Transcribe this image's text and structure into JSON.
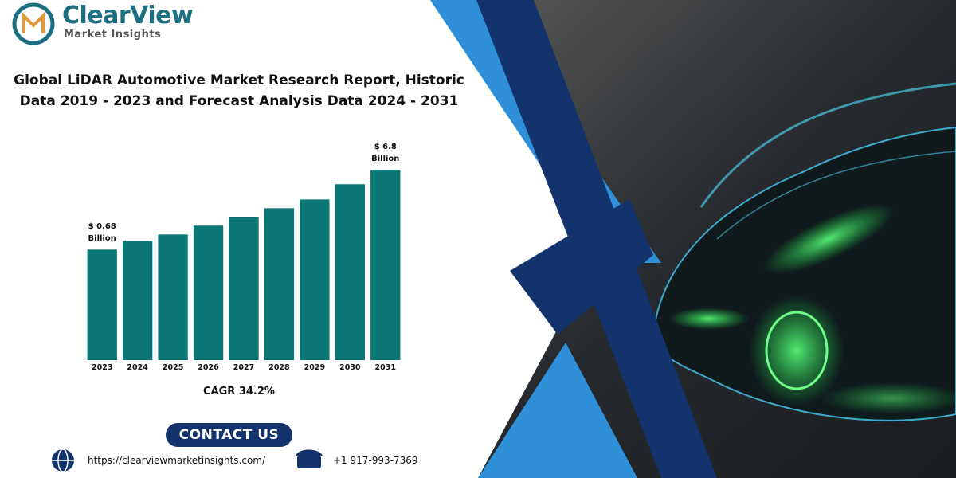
{
  "logo": {
    "name": "ClearView",
    "tagline": "Market Insights"
  },
  "chart_data": {
    "type": "bar",
    "title": "Global LiDAR Automotive Market Research Report, Historic Data 2019 - 2023 and Forecast Analysis Data 2024 - 2031",
    "categories": [
      "2023",
      "2024",
      "2025",
      "2026",
      "2027",
      "2028",
      "2029",
      "2030",
      "2031"
    ],
    "values": [
      0.68,
      1.35,
      1.84,
      2.52,
      3.19,
      3.86,
      4.53,
      5.7,
      6.8
    ],
    "value_labels": [
      "$ 0.68 Billion",
      null,
      null,
      null,
      null,
      null,
      null,
      null,
      "$ 6.8 Billion"
    ],
    "color": "#0b7775",
    "ylim": [
      -7.8,
      8.1
    ],
    "annotations": [
      "CAGR 34.2%"
    ]
  },
  "contact": {
    "button": "CONTACT US",
    "url": "https://clearviewmarketinsights.com/",
    "phone": "+1 917-993-7369"
  }
}
